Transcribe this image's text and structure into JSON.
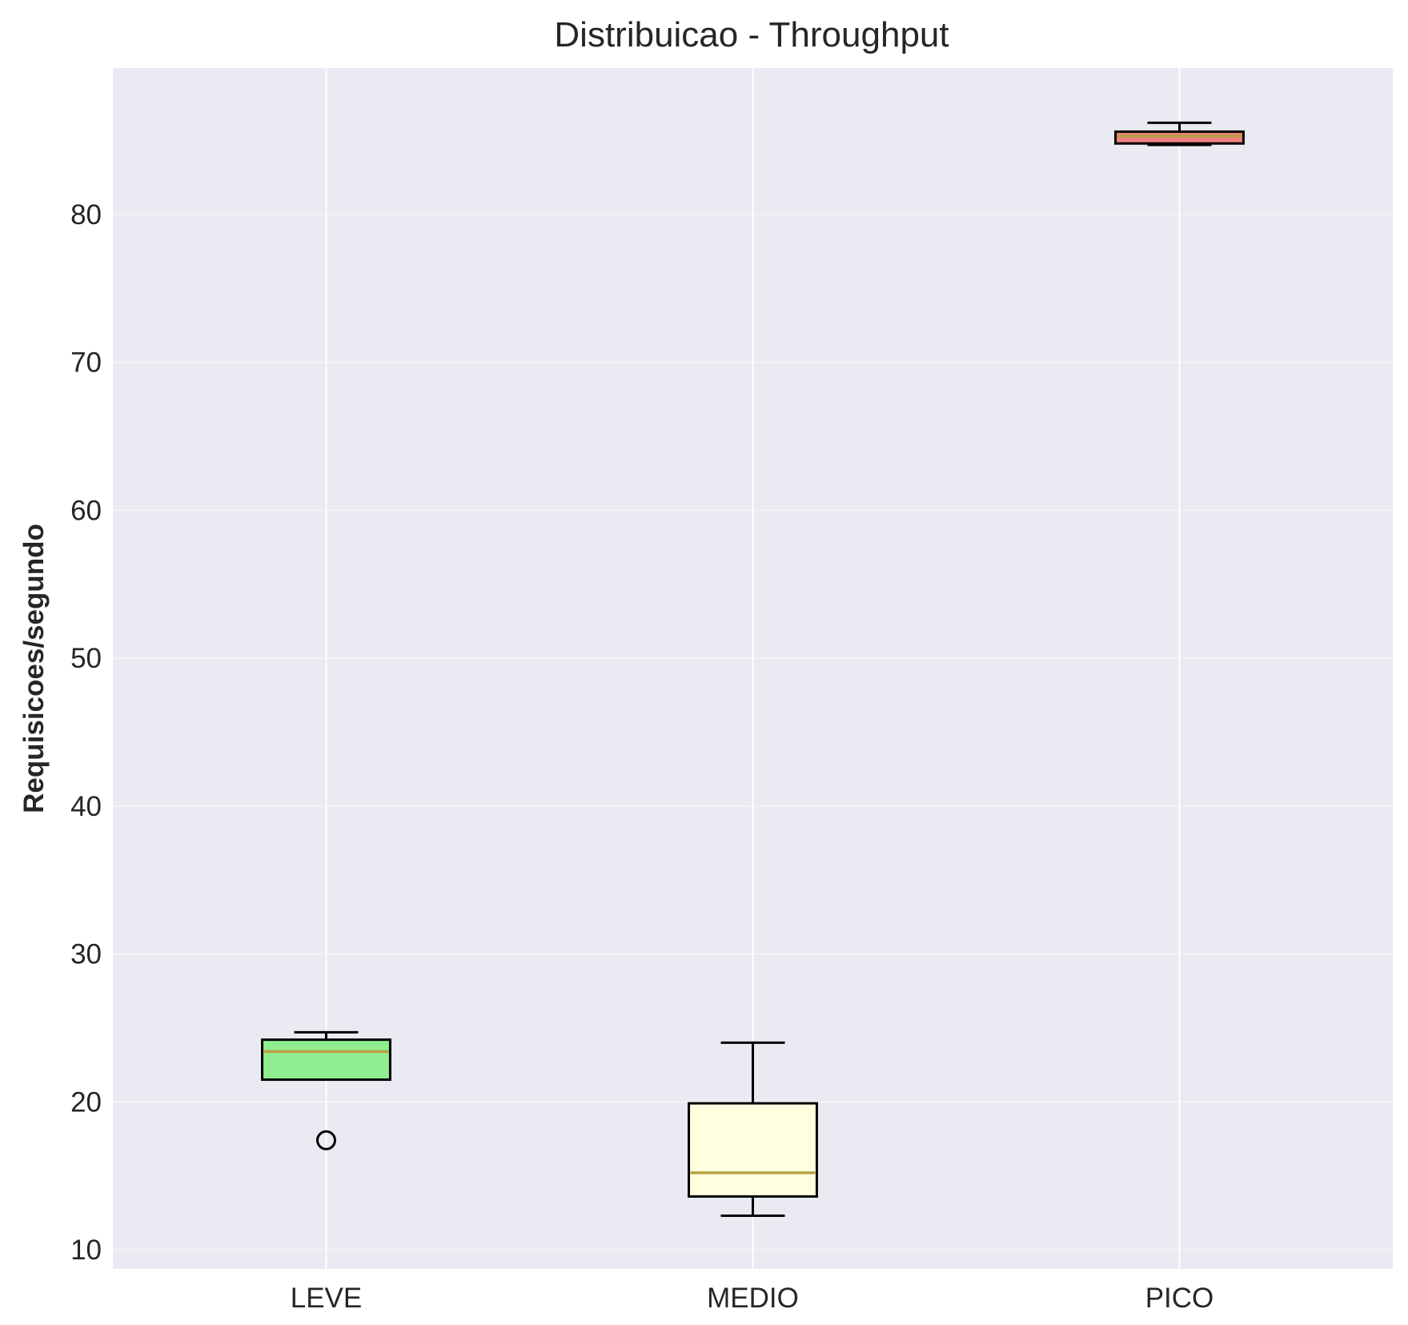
{
  "chart_data": {
    "type": "box",
    "title": "Distribuicao - Throughput",
    "xlabel": "",
    "ylabel": "Requisicoes/segundo",
    "ylim": [
      8.7,
      89.9
    ],
    "yticks": [
      10,
      20,
      30,
      40,
      50,
      60,
      70,
      80
    ],
    "grid": true,
    "categories": [
      "LEVE",
      "MEDIO",
      "PICO"
    ],
    "boxes": [
      {
        "category": "LEVE",
        "whisker_low": 21.5,
        "q1": 21.5,
        "median": 23.4,
        "q3": 24.2,
        "whisker_high": 24.7,
        "outliers": [
          17.4
        ],
        "color": "#90ee90"
      },
      {
        "category": "MEDIO",
        "whisker_low": 12.3,
        "q1": 13.6,
        "median": 15.2,
        "q3": 19.9,
        "whisker_high": 24.0,
        "outliers": [],
        "color": "#ffffe0"
      },
      {
        "category": "PICO",
        "whisker_low": 84.7,
        "q1": 84.8,
        "median": 85.3,
        "q3": 85.6,
        "whisker_high": 86.2,
        "outliers": [],
        "color": "#f08080"
      }
    ],
    "colors": {
      "plot_background": "#eaeaf2",
      "grid": "#ffffff",
      "box_edge": "#000000",
      "median": "#b8a040"
    }
  }
}
